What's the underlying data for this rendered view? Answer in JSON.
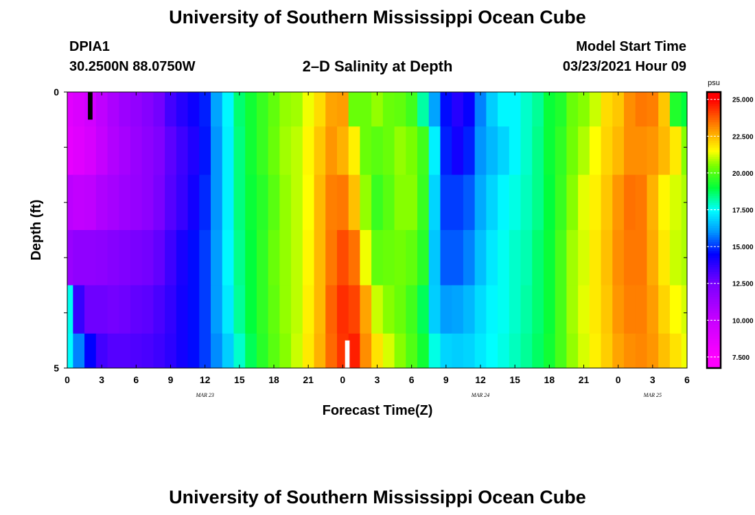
{
  "page_title": "University of Southern Mississippi Ocean Cube",
  "footer_title": "University of Southern Mississippi Ocean Cube",
  "station": {
    "id": "DPIA1",
    "coords": "30.2500N 88.0750W"
  },
  "model_start": {
    "label": "Model Start Time",
    "value": "03/23/2021 Hour 09"
  },
  "chart_data": {
    "type": "heatmap",
    "title": "2–D Salinity at Depth",
    "xlabel": "Forecast Time(Z)",
    "ylabel": "Depth (ft)",
    "x_tick_labels": [
      "0",
      "3",
      "6",
      "9",
      "12",
      "15",
      "18",
      "21",
      "0",
      "3",
      "6",
      "9",
      "12",
      "15",
      "18",
      "21",
      "0",
      "3",
      "6"
    ],
    "date_labels": [
      {
        "label": "MAR 23",
        "hour": 12
      },
      {
        "label": "MAR 24",
        "hour": 36
      },
      {
        "label": "MAR 25",
        "hour": 51
      }
    ],
    "y_tick_labels": [
      "0",
      "5"
    ],
    "ylim": [
      0,
      5
    ],
    "x_hours_range": [
      0,
      54
    ],
    "depth_rows": [
      0.25,
      1.0,
      2.0,
      3.0,
      4.0,
      4.75
    ],
    "times_hours": [
      0,
      1,
      2,
      3,
      4,
      5,
      6,
      7,
      8,
      9,
      10,
      11,
      12,
      13,
      14,
      15,
      16,
      17,
      18,
      19,
      20,
      21,
      22,
      23,
      24,
      25,
      26,
      27,
      28,
      29,
      30,
      31,
      32,
      33,
      34,
      35,
      36,
      37,
      38,
      39,
      40,
      41,
      42,
      43,
      44,
      45,
      46,
      47,
      48,
      49,
      50,
      51,
      52,
      53,
      54
    ],
    "salinity_psu": [
      [
        8.8,
        9.2,
        9.6,
        10.3,
        10.9,
        11.4,
        11.7,
        12.1,
        12.6,
        13.4,
        13.9,
        14.3,
        14.8,
        16.2,
        17.4,
        18.6,
        19.2,
        19.7,
        20.2,
        20.7,
        20.8,
        21.4,
        22.0,
        22.8,
        22.9,
        20.3,
        20.3,
        20.7,
        20.3,
        20.2,
        19.8,
        18.2,
        16.2,
        14.6,
        13.9,
        14.4,
        15.8,
        16.8,
        17.4,
        17.4,
        17.9,
        18.3,
        19.1,
        19.4,
        20.3,
        20.6,
        21.1,
        22.0,
        22.3,
        23.1,
        23.4,
        23.3,
        22.3,
        19.4,
        19.0
      ],
      [
        8.6,
        8.9,
        9.3,
        10.1,
        10.7,
        11.1,
        11.5,
        11.9,
        12.3,
        13.0,
        13.5,
        14.0,
        14.7,
        16.0,
        17.3,
        18.5,
        19.2,
        19.7,
        20.3,
        20.8,
        21.0,
        21.6,
        22.3,
        23.0,
        22.6,
        21.7,
        20.3,
        20.1,
        20.3,
        20.7,
        20.5,
        19.8,
        17.3,
        14.8,
        14.2,
        14.8,
        16.0,
        16.5,
        16.9,
        17.4,
        17.9,
        18.4,
        19.1,
        19.6,
        20.4,
        20.9,
        21.5,
        22.1,
        22.5,
        23.1,
        23.1,
        23.0,
        22.5,
        21.8,
        20.6
      ],
      [
        10.4,
        10.2,
        10.3,
        10.8,
        11.1,
        11.4,
        11.6,
        11.9,
        12.5,
        13.1,
        13.6,
        14.2,
        14.9,
        16.0,
        17.3,
        18.5,
        19.1,
        19.5,
        20.1,
        20.7,
        21.0,
        21.5,
        22.5,
        23.3,
        23.4,
        22.4,
        20.7,
        19.7,
        20.1,
        20.6,
        20.6,
        19.7,
        16.9,
        15.1,
        15.1,
        15.4,
        16.3,
        16.9,
        17.4,
        17.7,
        18.0,
        18.4,
        19.0,
        19.7,
        20.6,
        21.3,
        21.7,
        22.3,
        23.0,
        23.5,
        23.4,
        22.6,
        21.6,
        21.2,
        20.9
      ],
      [
        11.5,
        11.8,
        11.8,
        11.9,
        12.1,
        12.3,
        12.5,
        12.6,
        12.9,
        13.5,
        14.1,
        14.6,
        15.1,
        16.1,
        17.4,
        18.4,
        19.0,
        19.6,
        20.3,
        20.7,
        21.0,
        21.6,
        22.5,
        23.4,
        24.0,
        23.5,
        21.4,
        20.2,
        20.3,
        20.4,
        20.2,
        19.5,
        16.7,
        15.4,
        15.4,
        15.8,
        16.6,
        17.2,
        17.6,
        17.9,
        18.1,
        18.6,
        19.1,
        19.9,
        20.8,
        21.2,
        21.8,
        22.4,
        23.1,
        23.4,
        23.4,
        22.7,
        21.8,
        21.1,
        20.9
      ],
      [
        17.6,
        13.6,
        12.7,
        12.7,
        12.6,
        12.7,
        12.9,
        13.0,
        13.3,
        13.7,
        14.2,
        14.6,
        15.1,
        16.1,
        17.2,
        18.3,
        19.0,
        19.6,
        20.2,
        20.7,
        21.0,
        21.7,
        22.5,
        23.7,
        24.4,
        24.1,
        22.8,
        21.1,
        20.6,
        20.3,
        19.8,
        18.8,
        16.8,
        16.1,
        16.2,
        16.5,
        17.0,
        17.4,
        17.6,
        17.9,
        18.2,
        18.6,
        19.1,
        19.9,
        20.8,
        21.3,
        21.8,
        22.3,
        23.0,
        23.3,
        23.3,
        22.9,
        22.1,
        21.5,
        21.2
      ],
      [
        17.5,
        15.8,
        14.5,
        13.4,
        13.1,
        13.1,
        13.2,
        13.3,
        13.5,
        13.8,
        14.2,
        14.6,
        15.1,
        15.9,
        16.8,
        17.9,
        18.8,
        19.5,
        20.1,
        20.6,
        21.1,
        21.8,
        22.6,
        23.6,
        24.3,
        24.6,
        23.1,
        21.9,
        21.2,
        20.6,
        20.0,
        19.2,
        17.7,
        16.9,
        16.8,
        16.9,
        17.2,
        17.5,
        17.7,
        18.0,
        18.3,
        18.7,
        19.2,
        19.9,
        20.7,
        21.2,
        21.7,
        22.2,
        22.8,
        23.1,
        23.2,
        23.0,
        22.4,
        21.9,
        21.4
      ]
    ],
    "missing_markers": [
      {
        "hour_start": 1.8,
        "hour_end": 2.2,
        "depth_start": 0.0,
        "depth_end": 0.5,
        "color": "#000000"
      },
      {
        "hour_start": 24.2,
        "hour_end": 24.6,
        "depth_start": 4.5,
        "depth_end": 5.0,
        "color": "#ffffff"
      }
    ],
    "colorbar": {
      "unit": "psu",
      "min": 6.75,
      "max": 25.5,
      "tick_labels": [
        "7.500",
        "10.000",
        "12.500",
        "15.000",
        "17.500",
        "20.000",
        "22.500",
        "25.000"
      ],
      "tick_values": [
        7.5,
        10.0,
        12.5,
        15.0,
        17.5,
        20.0,
        22.5,
        25.0
      ]
    },
    "colormap_stops": [
      {
        "value": 7.5,
        "color": "#ff00ff"
      },
      {
        "value": 10.0,
        "color": "#c800ff"
      },
      {
        "value": 12.5,
        "color": "#7a00ff"
      },
      {
        "value": 14.5,
        "color": "#0000ff"
      },
      {
        "value": 16.0,
        "color": "#0096ff"
      },
      {
        "value": 17.5,
        "color": "#00ffff"
      },
      {
        "value": 19.0,
        "color": "#00ff3c"
      },
      {
        "value": 20.5,
        "color": "#78ff00"
      },
      {
        "value": 21.5,
        "color": "#ffff00"
      },
      {
        "value": 23.0,
        "color": "#ff9600"
      },
      {
        "value": 25.0,
        "color": "#ff0000"
      }
    ]
  }
}
